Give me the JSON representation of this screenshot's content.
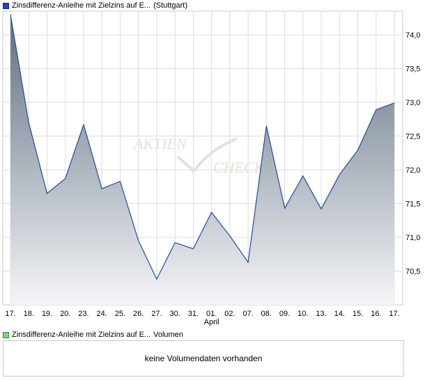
{
  "legend_price": {
    "name": "Zinsdifferenz-Anleihe mit Zielzins auf E...",
    "exchange": "(Stuttgart)"
  },
  "legend_volume": {
    "name": "Zinsdifferenz-Anleihe mit Zielzins auf E...",
    "label": "Volumen"
  },
  "volume_panel": {
    "message": "keine Volumendaten vorhanden"
  },
  "watermark": "AKTIEN CHECK",
  "colors": {
    "line": "#1f4aa8",
    "fill_top": "#5f6f7f",
    "fill_bottom": "#f4f5f7",
    "grid": "#dcdcdc",
    "frame": "#c8c8c8",
    "volume_swatch": "#7ed37e"
  },
  "chart_data": {
    "type": "area",
    "x": [
      "17.",
      "18.",
      "19.",
      "20.",
      "23.",
      "24.",
      "25.",
      "26.",
      "27.",
      "30.",
      "31.",
      "01.",
      "02.",
      "07.",
      "08.",
      "09.",
      "10.",
      "13.",
      "14.",
      "15.",
      "16.",
      "17."
    ],
    "month_labels": [
      {
        "index": 11,
        "text": "April"
      }
    ],
    "y": [
      74.3,
      72.7,
      71.65,
      71.87,
      72.67,
      71.72,
      71.83,
      70.95,
      70.38,
      70.92,
      70.83,
      71.37,
      71.02,
      70.63,
      72.65,
      71.43,
      71.91,
      71.42,
      71.93,
      72.29,
      72.89,
      72.99
    ],
    "y_ticks": [
      70.5,
      71.0,
      71.5,
      72.0,
      72.5,
      73.0,
      73.5,
      74.0
    ],
    "y_tick_labels": [
      "70,5",
      "71,0",
      "71,5",
      "72,0",
      "72,5",
      "73,0",
      "73,5",
      "74,0"
    ],
    "ylim": [
      70.0,
      74.35
    ],
    "y_axis_side": "right",
    "grid": true
  }
}
